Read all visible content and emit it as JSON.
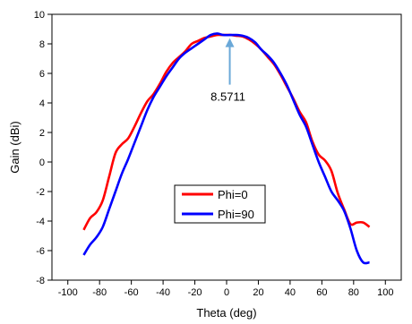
{
  "chart_data": {
    "type": "line",
    "title": "",
    "xlabel": "Theta (deg)",
    "ylabel": "Gain (dBi)",
    "xlim": [
      -110,
      110
    ],
    "ylim": [
      -8,
      10
    ],
    "xticks": [
      -100,
      -80,
      -60,
      -40,
      -20,
      0,
      20,
      40,
      60,
      80,
      100
    ],
    "yticks": [
      -8,
      -6,
      -4,
      -2,
      0,
      2,
      4,
      6,
      8,
      10
    ],
    "legend_position": "center-bottom",
    "series": [
      {
        "name": "Phi=0",
        "color": "#ff0000",
        "x": [
          -90,
          -86,
          -82,
          -78,
          -74,
          -70,
          -66,
          -62,
          -58,
          -54,
          -50,
          -46,
          -42,
          -38,
          -34,
          -30,
          -26,
          -22,
          -18,
          -14,
          -10,
          -6,
          -2,
          2,
          6,
          10,
          14,
          18,
          22,
          26,
          30,
          34,
          38,
          42,
          46,
          50,
          54,
          58,
          62,
          66,
          70,
          74,
          78,
          82,
          86,
          90
        ],
        "y": [
          -4.6,
          -3.8,
          -3.4,
          -2.6,
          -1.0,
          0.6,
          1.2,
          1.6,
          2.4,
          3.3,
          4.1,
          4.6,
          5.3,
          6.1,
          6.7,
          7.1,
          7.5,
          8.0,
          8.2,
          8.4,
          8.5,
          8.6,
          8.6,
          8.6,
          8.55,
          8.5,
          8.3,
          8.0,
          7.6,
          7.1,
          6.6,
          5.9,
          5.1,
          4.3,
          3.4,
          2.7,
          1.4,
          0.5,
          0.1,
          -0.6,
          -2.1,
          -3.2,
          -4.2,
          -4.1,
          -4.1,
          -4.4
        ]
      },
      {
        "name": "Phi=90",
        "color": "#0000ff",
        "x": [
          -90,
          -86,
          -82,
          -78,
          -74,
          -70,
          -66,
          -62,
          -58,
          -54,
          -50,
          -46,
          -42,
          -38,
          -34,
          -30,
          -26,
          -22,
          -18,
          -14,
          -10,
          -6,
          -2,
          2,
          6,
          10,
          14,
          18,
          22,
          26,
          30,
          34,
          38,
          42,
          46,
          50,
          54,
          58,
          62,
          66,
          70,
          74,
          78,
          82,
          86,
          90
        ],
        "y": [
          -6.3,
          -5.6,
          -5.1,
          -4.4,
          -3.2,
          -2.0,
          -0.8,
          0.2,
          1.3,
          2.4,
          3.5,
          4.4,
          5.1,
          5.8,
          6.4,
          7.0,
          7.4,
          7.7,
          8.0,
          8.3,
          8.6,
          8.7,
          8.6,
          8.6,
          8.6,
          8.55,
          8.4,
          8.1,
          7.6,
          7.2,
          6.7,
          6.0,
          5.2,
          4.2,
          3.2,
          2.4,
          1.2,
          0.0,
          -1.0,
          -2.0,
          -2.6,
          -3.3,
          -4.5,
          -6.0,
          -6.8,
          -6.8
        ]
      }
    ],
    "annotation": {
      "text": "8.5711",
      "x": 2,
      "y": 8.5711,
      "arrow_color": "#6aa8d8"
    }
  }
}
